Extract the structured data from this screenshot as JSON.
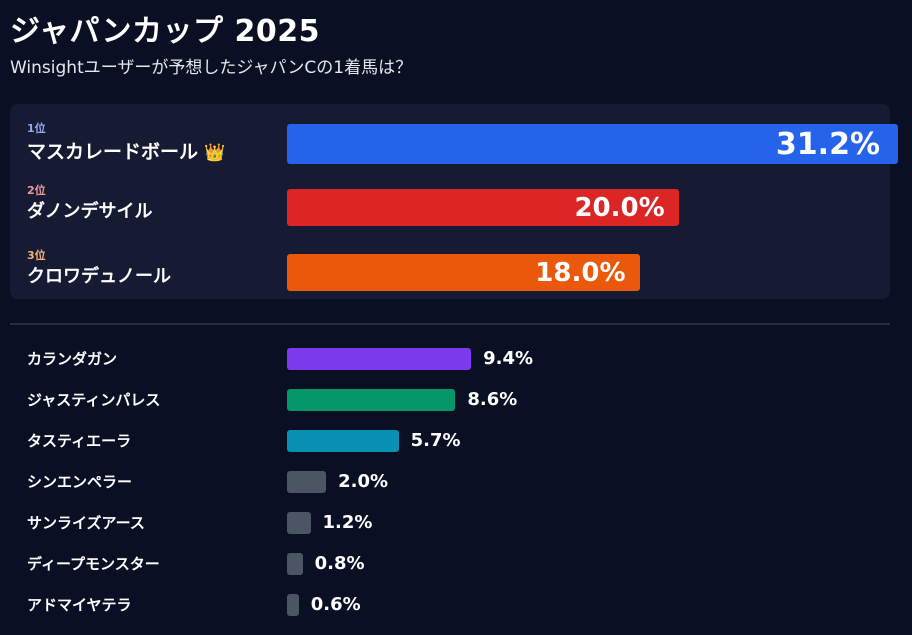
{
  "header": {
    "title": "ジャパンカップ 2025",
    "subtitle": "Winsightユーザーが予想したジャパンCの1着馬は？"
  },
  "top3": [
    {
      "rank": "1位",
      "name": "マスカレードボール",
      "crown": "👑",
      "pct_label": "31.2%",
      "value": 31.2,
      "color": "#2563eb",
      "rank_color": "#93a9ee"
    },
    {
      "rank": "2位",
      "name": "ダノンデサイル",
      "crown": "",
      "pct_label": "20.0%",
      "value": 20.0,
      "color": "#dc2626",
      "rank_color": "#f29a9a"
    },
    {
      "rank": "3位",
      "name": "クロワデュノール",
      "crown": "",
      "pct_label": "18.0%",
      "value": 18.0,
      "color": "#ea580c",
      "rank_color": "#f5b27c"
    }
  ],
  "others": [
    {
      "name": "カランダガン",
      "pct_label": "9.4%",
      "value": 9.4,
      "color": "#7c3aed"
    },
    {
      "name": "ジャスティンパレス",
      "pct_label": "8.6%",
      "value": 8.6,
      "color": "#059669"
    },
    {
      "name": "タスティエーラ",
      "pct_label": "5.7%",
      "value": 5.7,
      "color": "#0891b2"
    },
    {
      "name": "シンエンペラー",
      "pct_label": "2.0%",
      "value": 2.0,
      "color": "#4b5563"
    },
    {
      "name": "サンライズアース",
      "pct_label": "1.2%",
      "value": 1.2,
      "color": "#4b5563"
    },
    {
      "name": "ディープモンスター",
      "pct_label": "0.8%",
      "value": 0.8,
      "color": "#4b5563"
    },
    {
      "name": "アドマイヤテラ",
      "pct_label": "0.6%",
      "value": 0.6,
      "color": "#4b5563"
    }
  ],
  "colors": {
    "background": "#0b0f24",
    "panel": "#161a33",
    "divider": "#262b45"
  },
  "chart_data": {
    "type": "bar",
    "orientation": "horizontal",
    "title": "ジャパンカップ 2025",
    "subtitle": "Winsightユーザーが予想したジャパンCの1着馬は？",
    "categories": [
      "マスカレードボール",
      "ダノンデサイル",
      "クロワデュノール",
      "カランダガン",
      "ジャスティンパレス",
      "タスティエーラ",
      "シンエンペラー",
      "サンライズアース",
      "ディープモンスター",
      "アドマイヤテラ"
    ],
    "values": [
      31.2,
      20.0,
      18.0,
      9.4,
      8.6,
      5.7,
      2.0,
      1.2,
      0.8,
      0.6
    ],
    "unit": "%",
    "xlabel": "",
    "ylabel": "",
    "grid": false,
    "legend": false,
    "annotations": [
      "1位",
      "2位",
      "3位",
      "👑"
    ]
  }
}
